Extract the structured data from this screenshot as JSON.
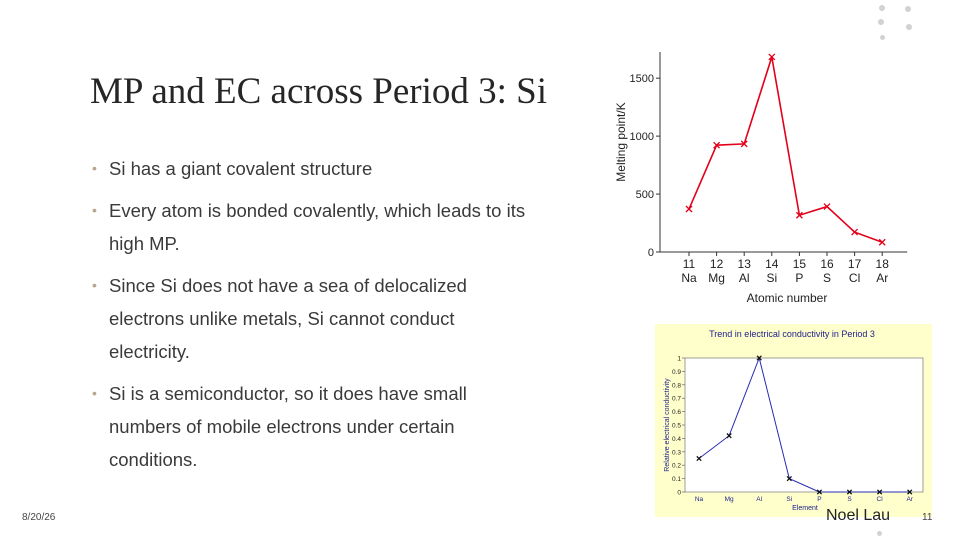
{
  "slide": {
    "title": "MP and EC across Period 3: Si",
    "bullets": [
      "Si has a giant covalent structure",
      "Every atom is bonded covalently, which leads to its high MP.",
      "Since Si does not have a sea of delocalized electrons unlike metals, Si cannot conduct electricity.",
      "Si is a semiconductor, so it does have small numbers of mobile electrons under certain conditions."
    ],
    "footer": {
      "date": "8/20/26",
      "author": "Noel Lau",
      "page": "11"
    }
  },
  "chart_data": [
    {
      "type": "line",
      "title": "",
      "xlabel": "Atomic number",
      "ylabel": "Melting point/K",
      "x": [
        11,
        12,
        13,
        14,
        15,
        16,
        17,
        18
      ],
      "categories": [
        "Na",
        "Mg",
        "Al",
        "Si",
        "P",
        "S",
        "Cl",
        "Ar"
      ],
      "values": [
        371,
        922,
        933,
        1683,
        317,
        392,
        172,
        84
      ],
      "ylim": [
        0,
        1700
      ],
      "yticks": [
        0,
        500,
        1000,
        1500
      ],
      "color": "#e3001b",
      "grid": false
    },
    {
      "type": "line",
      "title": "Trend in electrical conductivity in Period 3",
      "xlabel": "Element",
      "ylabel": "Relative electrical conductivity",
      "categories": [
        "Na",
        "Mg",
        "Al",
        "Si",
        "P",
        "S",
        "Cl",
        "Ar"
      ],
      "values": [
        0.25,
        0.42,
        1.0,
        0.1,
        0,
        0,
        0,
        0
      ],
      "ylim": [
        0,
        1
      ],
      "yticks": [
        0,
        0.1,
        0.2,
        0.3,
        0.4,
        0.5,
        0.6,
        0.7,
        0.8,
        0.9,
        1
      ],
      "color": "#2a2ab4",
      "background": "#ffffcc",
      "grid": false
    }
  ]
}
